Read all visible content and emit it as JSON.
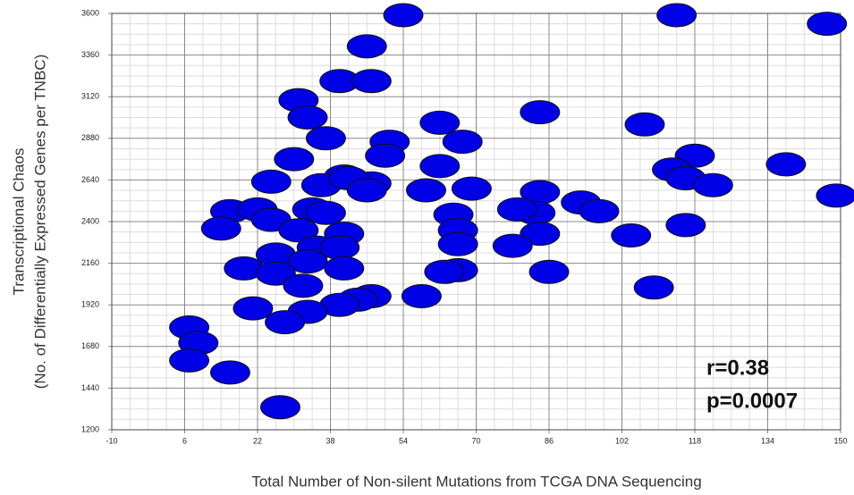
{
  "chart_data": {
    "type": "scatter",
    "xlabel": "Total Number of Non-silent Mutations from TCGA DNA Sequencing",
    "ylabel": [
      "Transcriptional Chaos",
      "(No. of Differentially Expressed Genes per TNBC)"
    ],
    "annotations": [
      "r=0.38",
      "p=0.0007"
    ],
    "xlim": [
      -10,
      150
    ],
    "xticks": [
      -10,
      6,
      22,
      38,
      54,
      70,
      86,
      102,
      118,
      134,
      150
    ],
    "ylim": [
      1200,
      3600
    ],
    "yticks": [
      1200,
      1440,
      1680,
      1920,
      2160,
      2400,
      2640,
      2880,
      3120,
      3360,
      3600
    ],
    "grid": true,
    "minor_grid": true,
    "color": "#0000e6",
    "x": [
      54,
      114,
      147,
      46,
      40,
      47,
      31,
      33,
      84,
      62,
      107,
      37,
      51,
      67,
      30,
      50,
      138,
      118,
      113,
      62,
      116,
      25,
      41,
      47,
      36,
      42,
      46,
      59,
      69,
      122,
      84,
      149,
      93,
      16,
      22,
      25,
      34,
      37,
      65,
      83,
      79,
      97,
      14,
      31,
      41,
      66,
      84,
      104,
      116,
      35,
      40,
      66,
      78,
      26,
      33,
      19,
      26,
      41,
      66,
      63,
      86,
      32,
      109,
      58,
      47,
      44,
      40,
      21,
      33,
      28,
      7,
      9,
      7,
      16,
      27
    ],
    "y": [
      3590,
      3590,
      3540,
      3410,
      3210,
      3210,
      3100,
      3000,
      3030,
      2970,
      2960,
      2880,
      2860,
      2860,
      2760,
      2780,
      2730,
      2780,
      2700,
      2720,
      2650,
      2630,
      2660,
      2620,
      2610,
      2650,
      2580,
      2580,
      2590,
      2610,
      2570,
      2550,
      2510,
      2460,
      2470,
      2410,
      2470,
      2450,
      2440,
      2450,
      2470,
      2460,
      2360,
      2350,
      2330,
      2350,
      2330,
      2320,
      2380,
      2250,
      2250,
      2270,
      2260,
      2210,
      2170,
      2130,
      2100,
      2130,
      2120,
      2110,
      2110,
      2030,
      2020,
      1970,
      1970,
      1950,
      1920,
      1900,
      1880,
      1820,
      1790,
      1700,
      1600,
      1530,
      1330
    ]
  }
}
